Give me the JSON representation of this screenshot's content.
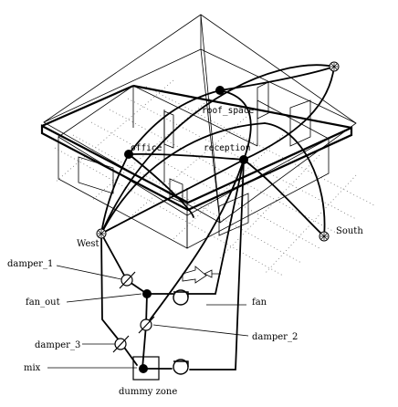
{
  "zones": {
    "roof_space": "roof_space",
    "office": "office",
    "reception": "reception"
  },
  "external_nodes": {
    "west": "West",
    "south": "South"
  },
  "components": {
    "damper_1": "damper_1",
    "fan_out": "fan_out",
    "fan": "fan",
    "damper_2": "damper_2",
    "damper_3": "damper_3",
    "mix": "mix",
    "dummy_zone": "dummy zone"
  }
}
